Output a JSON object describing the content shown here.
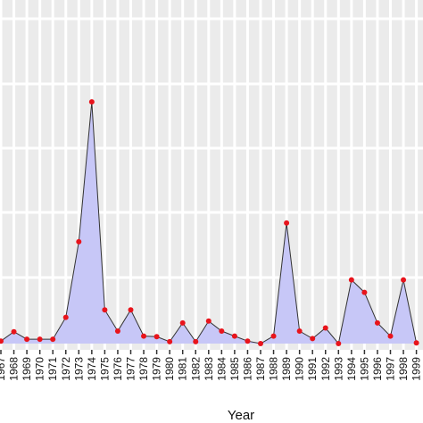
{
  "chart_data": {
    "type": "area",
    "title": "",
    "xlabel": "Year",
    "ylabel": "",
    "grid": true,
    "colors": {
      "panel_background": "#ebebeb",
      "grid": "#ffffff",
      "area_fill": "#c7c7f7",
      "line": "#333333",
      "point": "#e8141c"
    },
    "x": [
      "1967",
      "1968",
      "1969",
      "1970",
      "1971",
      "1972",
      "1973",
      "1974",
      "1975",
      "1976",
      "1977",
      "1978",
      "1979",
      "1980",
      "1981",
      "1982",
      "1983",
      "1984",
      "1985",
      "1986",
      "1987",
      "1988",
      "1989",
      "1990",
      "1991",
      "1992",
      "1993",
      "1994",
      "1995",
      "1996",
      "1997",
      "1998",
      "1999"
    ],
    "y_relative": [
      0.4,
      1.9,
      0.7,
      0.7,
      0.7,
      4.2,
      16.3,
      38.7,
      5.4,
      2.0,
      5.4,
      1.2,
      1.1,
      0.3,
      3.3,
      0.3,
      3.6,
      2.0,
      1.2,
      0.4,
      0.0,
      1.2,
      19.3,
      2.0,
      0.8,
      2.5,
      0.0,
      10.2,
      8.2,
      3.3,
      1.2,
      10.2,
      0.1
    ],
    "y_axis_range": [
      0,
      55
    ]
  }
}
